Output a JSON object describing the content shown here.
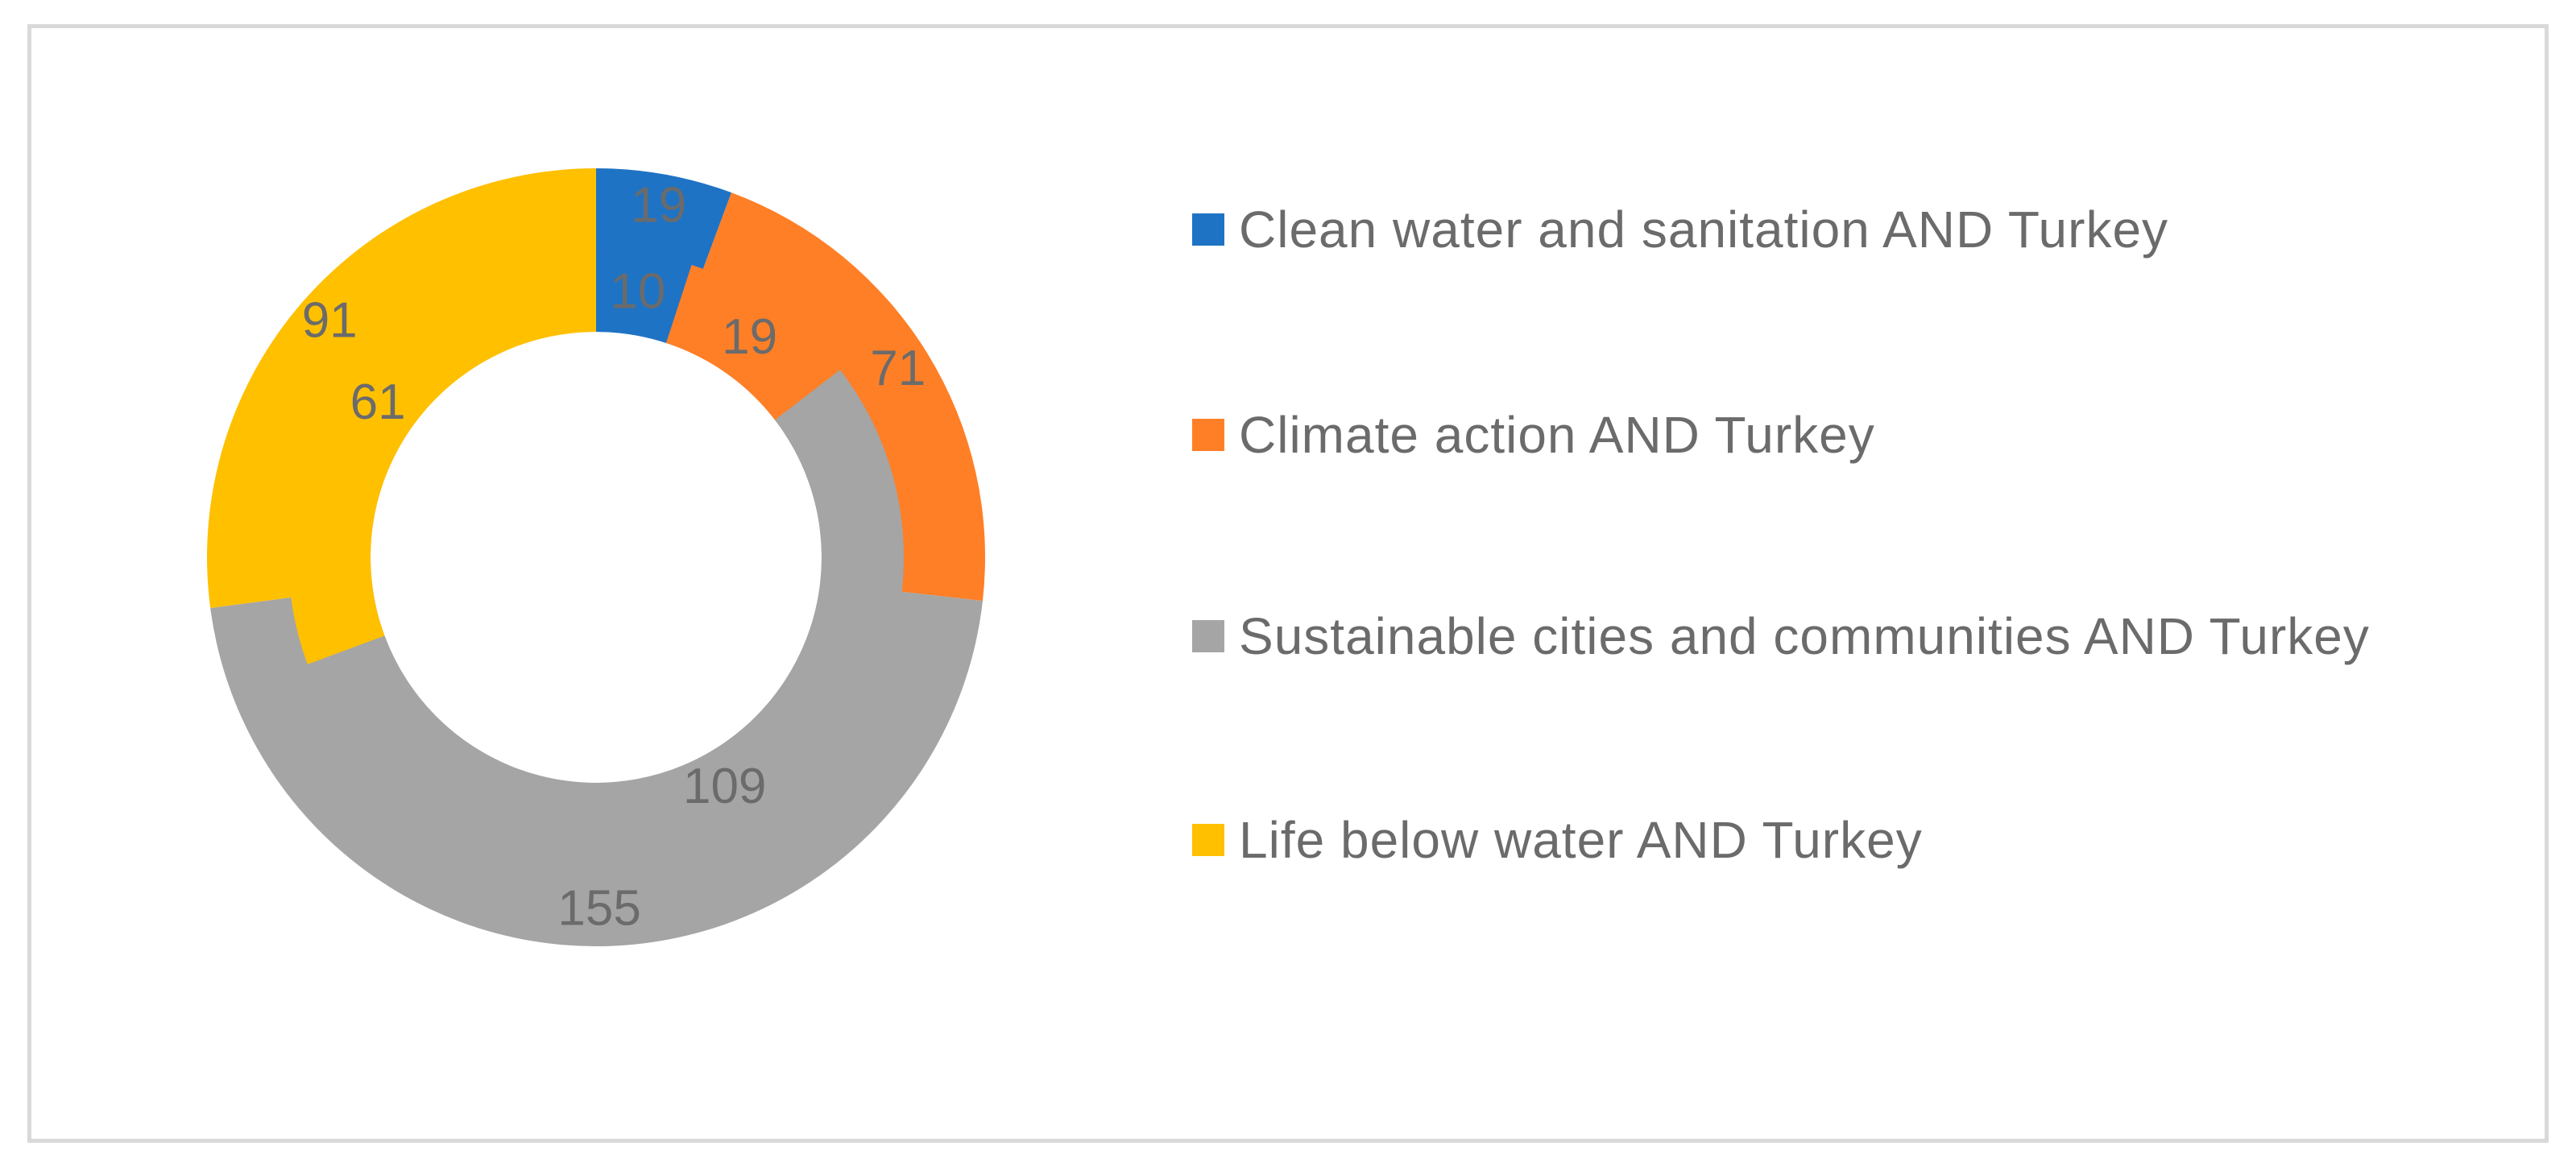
{
  "chart_data": {
    "type": "donut",
    "series": [
      {
        "name": "",
        "ring": "inner",
        "values": [
          10,
          19,
          109,
          61
        ]
      },
      {
        "name": "",
        "ring": "outer",
        "values": [
          19,
          71,
          155,
          91
        ]
      }
    ],
    "categories": [
      "Clean water and sanitation AND Turkey",
      "Climate action AND Turkey",
      "Sustainable cities and communities AND Turkey",
      "Life below water AND Turkey"
    ],
    "colors": [
      "#1f73c4",
      "#ff7f27",
      "#a5a5a5",
      "#ffc000"
    ],
    "title": "",
    "legend_placement": "right"
  },
  "legend": {
    "items": [
      {
        "label": "Clean water and sanitation AND Turkey",
        "color": "#1f73c4"
      },
      {
        "label": "Climate action AND Turkey",
        "color": "#ff7f27"
      },
      {
        "label": "Sustainable cities and communities AND Turkey",
        "color": "#a5a5a5"
      },
      {
        "label": "Life below water AND Turkey",
        "color": "#ffc000"
      }
    ]
  }
}
